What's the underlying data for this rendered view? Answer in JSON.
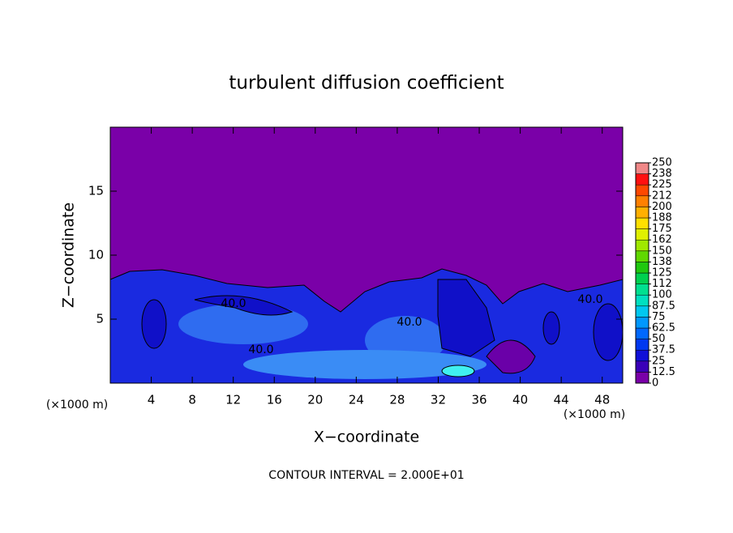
{
  "chart_data": {
    "type": "contour",
    "title": "turbulent diffusion coefficient",
    "x_label": "X−coordinate",
    "y_label": "Z−coordinate",
    "x_unit_left": "(×1000 m)",
    "x_unit_right": "(×1000 m)",
    "footer": "CONTOUR INTERVAL = 2.000E+01",
    "xlim": [
      0,
      50
    ],
    "xticks": [
      4,
      8,
      12,
      16,
      20,
      24,
      28,
      32,
      36,
      40,
      44,
      48
    ],
    "ylim": [
      0,
      20
    ],
    "yticks": [
      5,
      10,
      15
    ],
    "annotations": [
      "40.0",
      "40.0",
      "40.0",
      "40.0"
    ],
    "colorbar": {
      "lim": [
        0,
        250
      ],
      "ticks": [
        0,
        12.5,
        25,
        37.5,
        50,
        62.5,
        75,
        87.5,
        100,
        {
          "value": 112.5,
          "label": "112"
        },
        125,
        {
          "value": 137.5,
          "label": "138"
        },
        150,
        {
          "value": 162.5,
          "label": "162"
        },
        175,
        {
          "value": 187.5,
          "label": "188"
        },
        200,
        {
          "value": 212.5,
          "label": "212"
        },
        225,
        {
          "value": 237.5,
          "label": "238"
        },
        250
      ],
      "colors": [
        "#7a00a8",
        "#3a00b8",
        "#1010d8",
        "#0038f0",
        "#0068ff",
        "#0098ff",
        "#00c8f0",
        "#00e0c0",
        "#00e090",
        "#00d050",
        "#20c810",
        "#60d800",
        "#a0e800",
        "#e0f000",
        "#ffe000",
        "#ffb000",
        "#ff8000",
        "#ff4800",
        "#ff1010",
        "#f08888"
      ]
    }
  }
}
